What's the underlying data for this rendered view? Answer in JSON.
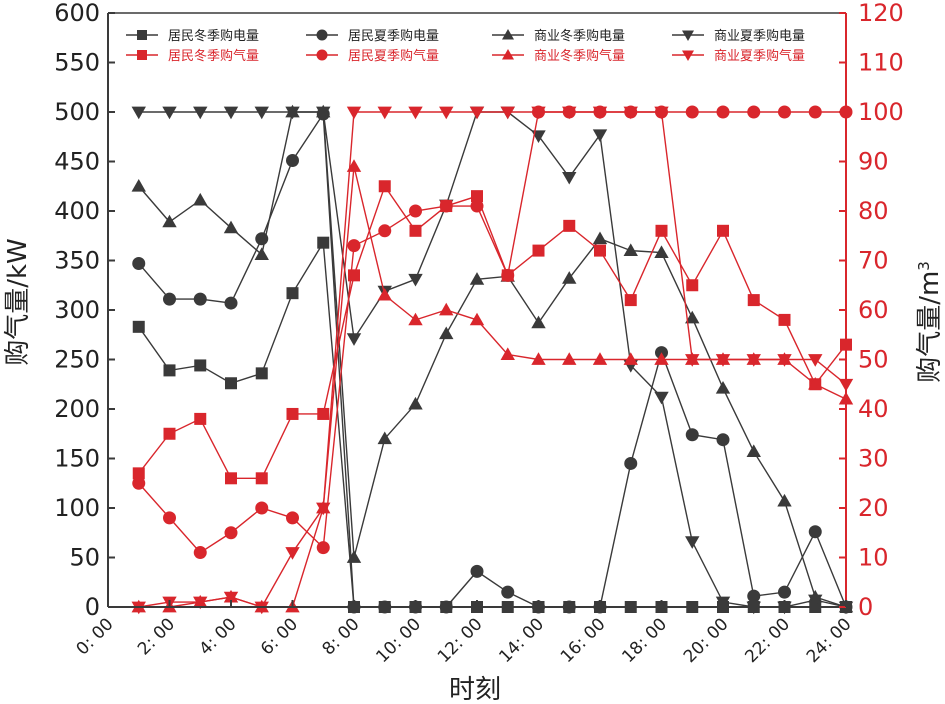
{
  "chart_data": {
    "type": "line",
    "xlabel": "时刻",
    "ylabel_left": "购气量/kW",
    "ylabel_right_main": "购气量/m",
    "ylabel_right_sup": "3",
    "left_ylim": [
      0,
      600
    ],
    "right_ylim": [
      0,
      120
    ],
    "left_ticks": [
      0,
      50,
      100,
      150,
      200,
      250,
      300,
      350,
      400,
      450,
      500,
      550,
      600
    ],
    "right_ticks": [
      0,
      10,
      20,
      30,
      40,
      50,
      60,
      70,
      80,
      90,
      100,
      110,
      120
    ],
    "x_ticks": [
      "0: 00",
      "2: 00",
      "4: 00",
      "6: 00",
      "8: 00",
      "10: 00",
      "12: 00",
      "14: 00",
      "16: 00",
      "18: 00",
      "20: 00",
      "22: 00",
      "24: 00"
    ],
    "x": [
      1,
      2,
      3,
      4,
      5,
      6,
      7,
      8,
      9,
      10,
      11,
      12,
      13,
      14,
      15,
      16,
      17,
      18,
      19,
      20,
      21,
      22,
      23,
      24
    ],
    "grid": false,
    "legend_position": "top",
    "colors": {
      "black": "#3a3a3a",
      "red": "#d9262c"
    },
    "series": [
      {
        "name": "居民冬季购电量",
        "axis": "left",
        "color": "#3a3a3a",
        "marker": "square",
        "values": [
          283,
          239,
          244,
          226,
          236,
          317,
          368,
          0,
          0,
          0,
          0,
          0,
          0,
          0,
          0,
          0,
          0,
          0,
          0,
          0,
          0,
          0,
          0,
          0
        ]
      },
      {
        "name": "居民夏季购电量",
        "axis": "left",
        "color": "#3a3a3a",
        "marker": "circle",
        "values": [
          347,
          311,
          311,
          307,
          372,
          451,
          498,
          0,
          0,
          0,
          0,
          36,
          15,
          0,
          0,
          0,
          145,
          257,
          174,
          169,
          11,
          15,
          76,
          0
        ]
      },
      {
        "name": "商业冬季购电量",
        "axis": "left",
        "color": "#3a3a3a",
        "marker": "triangle-up",
        "values": [
          425,
          389,
          411,
          383,
          356,
          500,
          500,
          50,
          170,
          205,
          276,
          331,
          334,
          287,
          332,
          372,
          360,
          358,
          292,
          221,
          157,
          107,
          10,
          0
        ]
      },
      {
        "name": "商业夏季购电量",
        "axis": "left",
        "color": "#3a3a3a",
        "marker": "triangle-down",
        "values": [
          500,
          500,
          500,
          500,
          500,
          500,
          500,
          271,
          319,
          331,
          406,
          500,
          500,
          476,
          434,
          477,
          244,
          212,
          66,
          5,
          0,
          0,
          7,
          0
        ]
      },
      {
        "name": "居民冬季购气量",
        "axis": "right",
        "color": "#d9262c",
        "marker": "square",
        "values": [
          27,
          35,
          38,
          26,
          26,
          39,
          39,
          67,
          85,
          76,
          81,
          83,
          67,
          72,
          77,
          72,
          62,
          76,
          65,
          76,
          62,
          58,
          45,
          53
        ]
      },
      {
        "name": "居民夏季购气量",
        "axis": "right",
        "color": "#d9262c",
        "marker": "circle",
        "values": [
          25,
          18,
          11,
          15,
          20,
          18,
          12,
          73,
          76,
          80,
          81,
          81,
          67,
          100,
          100,
          100,
          100,
          100,
          100,
          100,
          100,
          100,
          100,
          100
        ]
      },
      {
        "name": "商业冬季购气量",
        "axis": "right",
        "color": "#d9262c",
        "marker": "triangle-up",
        "values": [
          0,
          0,
          1,
          2,
          0,
          0,
          20,
          89,
          63,
          58,
          60,
          58,
          51,
          50,
          50,
          50,
          50,
          50,
          50,
          50,
          50,
          50,
          45,
          42
        ]
      },
      {
        "name": "商业夏季购气量",
        "axis": "right",
        "color": "#d9262c",
        "marker": "triangle-down",
        "values": [
          0,
          1,
          1,
          2,
          0,
          11,
          20,
          100,
          100,
          100,
          100,
          100,
          100,
          100,
          100,
          100,
          100,
          100,
          50,
          50,
          50,
          50,
          50,
          45
        ]
      }
    ]
  }
}
